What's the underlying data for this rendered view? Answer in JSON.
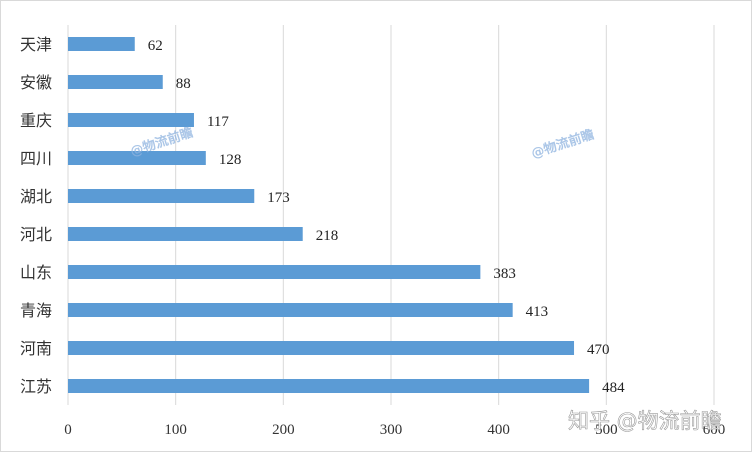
{
  "chart_data": {
    "type": "bar",
    "orientation": "horizontal",
    "categories": [
      "天津",
      "安徽",
      "重庆",
      "四川",
      "湖北",
      "河北",
      "山东",
      "青海",
      "河南",
      "江苏"
    ],
    "values": [
      62,
      88,
      117,
      128,
      173,
      218,
      383,
      413,
      470,
      484
    ],
    "xticks": [
      0,
      100,
      200,
      300,
      400,
      500,
      600
    ],
    "xlim": [
      0,
      600
    ],
    "grid": "vertical",
    "color": "#5b9bd5",
    "title": "",
    "xlabel": "",
    "ylabel": ""
  },
  "watermarks": [
    "@物流前瞻",
    "@物流前瞻",
    "知乎 @物流前瞻"
  ]
}
